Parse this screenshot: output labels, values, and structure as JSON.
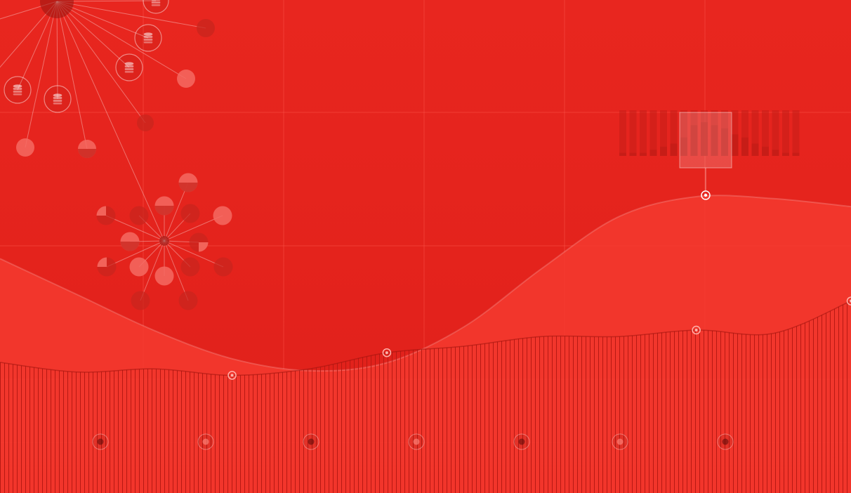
{
  "palette": {
    "background_top": "#e8261f",
    "background_bottom": "#e0201a",
    "area_fill": "#f5392f",
    "grid_line": "#ff5a4f",
    "node_light": "#f56a62",
    "node_dark": "#c8251e",
    "bar_dark": "#c51d17",
    "bar_light": "#ee3b33",
    "stripe": "#b71913",
    "marker_ring": "#ffb2ab"
  },
  "icons": {
    "node": "database-icon",
    "marker": "target-icon"
  },
  "chart_data": {
    "type": "area",
    "title": "",
    "xlabel": "",
    "ylabel": "",
    "grid": true,
    "legend": "none",
    "series": [
      {
        "values": [
          62,
          44,
          26,
          12,
          6,
          10,
          28,
          57,
          83,
          93,
          92,
          88
        ]
      },
      {
        "values": [
          40,
          37,
          38,
          36,
          38,
          43,
          45,
          48,
          48,
          50,
          49,
          59
        ]
      }
    ],
    "highlighted_points": [
      3,
      5,
      9,
      11
    ],
    "mini_histogram": [
      1,
      1,
      1,
      2,
      3,
      4,
      6,
      10,
      11,
      10,
      9,
      7,
      6,
      4,
      3,
      2,
      1,
      1
    ]
  }
}
